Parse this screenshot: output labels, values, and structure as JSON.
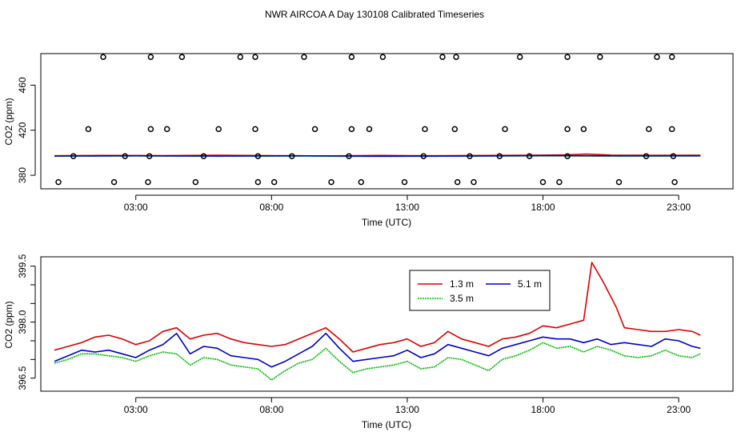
{
  "figure_title": "NWR AIRCOA A  Day 130108  Calibrated Timeseries",
  "chart_data": [
    {
      "type": "line",
      "title": "NWR AIRCOA A  Day 130108  Calibrated Timeseries",
      "xlabel": "Time (UTC)",
      "ylabel": "CO2 (ppm)",
      "xlim": [
        -0.5,
        25.0
      ],
      "ylim": [
        368,
        488
      ],
      "xticks": [
        3,
        8,
        13,
        18,
        23
      ],
      "xtick_labels": [
        "03:00",
        "08:00",
        "13:00",
        "18:00",
        "23:00"
      ],
      "yticks": [
        380,
        420,
        460
      ],
      "ytick_labels": [
        "380",
        "420",
        "460"
      ],
      "grid": false,
      "points_top": {
        "y": 485,
        "x": [
          1.8,
          3.55,
          4.7,
          6.85,
          7.4,
          9.2,
          10.95,
          12.1,
          14.3,
          14.8,
          17.15,
          18.9,
          20.1,
          22.2,
          22.75
        ]
      },
      "points_mid": {
        "y": 421,
        "x": [
          1.25,
          3.55,
          4.15,
          6.05,
          7.4,
          9.6,
          10.95,
          11.6,
          13.65,
          14.75,
          16.6,
          18.9,
          19.5,
          21.9,
          22.75
        ]
      },
      "points_low": {
        "y": 397,
        "x": [
          0.7,
          2.6,
          3.5,
          5.5,
          7.5,
          8.75,
          10.85,
          13.6,
          15.3,
          16.4,
          17.5,
          18.9,
          21.8,
          22.8
        ]
      },
      "points_bottom": {
        "y": 374,
        "x": [
          0.15,
          2.2,
          3.45,
          5.2,
          7.5,
          8.1,
          10.2,
          11.3,
          12.9,
          14.85,
          15.45,
          18.0,
          18.6,
          20.8,
          22.85
        ]
      },
      "series": [
        {
          "name": "1.3 m",
          "color": "#dd0000",
          "x": [
            0,
            2,
            4,
            6,
            8,
            10,
            12,
            14,
            16,
            18,
            18.9,
            19.6,
            20.5,
            22,
            23.8
          ],
          "values": [
            397.3,
            397.6,
            397.4,
            397.8,
            397.5,
            397.2,
            397.6,
            397.3,
            397.6,
            397.9,
            398.2,
            398.9,
            398.0,
            397.7,
            397.8
          ]
        },
        {
          "name": "3.5 m",
          "color": "#00bb00",
          "x": [
            0,
            3,
            6,
            9,
            12,
            15,
            18,
            21,
            23.8
          ],
          "values": [
            396.9,
            397.1,
            396.8,
            397.0,
            396.7,
            396.9,
            397.2,
            396.9,
            397.1
          ]
        },
        {
          "name": "5.1 m",
          "color": "#0000cc",
          "x": [
            0,
            3,
            6,
            9,
            12,
            15,
            18,
            21,
            23.8
          ],
          "values": [
            397.1,
            397.3,
            397.1,
            397.3,
            397.0,
            397.2,
            397.5,
            397.3,
            397.3
          ]
        }
      ]
    },
    {
      "type": "line",
      "xlabel": "Time (UTC)",
      "ylabel": "CO2 (ppm)",
      "xlim": [
        -0.5,
        25.0
      ],
      "ylim": [
        396.15,
        399.75
      ],
      "xticks": [
        3,
        8,
        13,
        18,
        23
      ],
      "xtick_labels": [
        "03:00",
        "08:00",
        "13:00",
        "18:00",
        "23:00"
      ],
      "yticks": [
        396.5,
        397.0,
        397.5,
        398.0,
        398.5,
        399.0,
        399.5
      ],
      "ytick_labels": [
        "396.5",
        "",
        "",
        "398.0",
        "",
        "",
        "399.5"
      ],
      "grid": false,
      "legend": {
        "position": "top-center",
        "entries": [
          "1.3 m",
          "5.1 m",
          "3.5 m"
        ]
      },
      "series": [
        {
          "name": "1.3 m",
          "color": "#dd0000",
          "x": [
            0.0,
            0.5,
            1.0,
            1.5,
            2.0,
            2.5,
            3.0,
            3.5,
            4.0,
            4.5,
            5.0,
            5.5,
            6.0,
            6.5,
            7.0,
            7.5,
            8.0,
            8.5,
            9.0,
            9.5,
            10.0,
            10.5,
            11.0,
            11.5,
            12.0,
            12.5,
            13.0,
            13.5,
            14.0,
            14.5,
            15.0,
            15.5,
            16.0,
            16.5,
            17.0,
            17.5,
            18.0,
            18.5,
            19.0,
            19.5,
            19.8,
            20.2,
            20.7,
            21.0,
            21.5,
            22.0,
            22.5,
            23.0,
            23.5,
            23.8
          ],
          "values": [
            397.25,
            397.35,
            397.45,
            397.6,
            397.65,
            397.55,
            397.4,
            397.5,
            397.75,
            397.85,
            397.55,
            397.65,
            397.7,
            397.55,
            397.45,
            397.4,
            397.35,
            397.4,
            397.55,
            397.7,
            397.85,
            397.55,
            397.2,
            397.3,
            397.4,
            397.45,
            397.55,
            397.35,
            397.45,
            397.75,
            397.55,
            397.45,
            397.35,
            397.55,
            397.6,
            397.7,
            397.9,
            397.85,
            397.95,
            398.05,
            399.6,
            399.1,
            398.4,
            397.85,
            397.8,
            397.75,
            397.75,
            397.8,
            397.75,
            397.65
          ]
        },
        {
          "name": "5.1 m",
          "color": "#0000cc",
          "x": [
            0.0,
            0.5,
            1.0,
            1.5,
            2.0,
            2.5,
            3.0,
            3.5,
            4.0,
            4.5,
            5.0,
            5.5,
            6.0,
            6.5,
            7.0,
            7.5,
            8.0,
            8.5,
            9.0,
            9.5,
            10.0,
            10.5,
            11.0,
            11.5,
            12.0,
            12.5,
            13.0,
            13.5,
            14.0,
            14.5,
            15.0,
            15.5,
            16.0,
            16.5,
            17.0,
            17.5,
            18.0,
            18.5,
            19.0,
            19.5,
            20.0,
            20.5,
            21.0,
            21.5,
            22.0,
            22.5,
            23.0,
            23.5,
            23.8
          ],
          "values": [
            396.95,
            397.1,
            397.25,
            397.2,
            397.25,
            397.15,
            397.05,
            397.25,
            397.4,
            397.7,
            397.15,
            397.35,
            397.3,
            397.1,
            397.05,
            397.0,
            396.8,
            396.95,
            397.15,
            397.35,
            397.7,
            397.3,
            396.95,
            397.0,
            397.05,
            397.1,
            397.25,
            397.05,
            397.15,
            397.4,
            397.3,
            397.2,
            397.1,
            397.3,
            397.4,
            397.5,
            397.6,
            397.55,
            397.55,
            397.45,
            397.55,
            397.4,
            397.45,
            397.4,
            397.35,
            397.55,
            397.5,
            397.35,
            397.3
          ]
        },
        {
          "name": "3.5 m",
          "color": "#00bb00",
          "x": [
            0.0,
            0.5,
            1.0,
            1.5,
            2.0,
            2.5,
            3.0,
            3.5,
            4.0,
            4.5,
            5.0,
            5.5,
            6.0,
            6.5,
            7.0,
            7.5,
            8.0,
            8.5,
            9.0,
            9.5,
            10.0,
            10.5,
            11.0,
            11.5,
            12.0,
            12.5,
            13.0,
            13.5,
            14.0,
            14.5,
            15.0,
            15.5,
            16.0,
            16.5,
            17.0,
            17.5,
            18.0,
            18.5,
            19.0,
            19.5,
            20.0,
            20.5,
            21.0,
            21.5,
            22.0,
            22.5,
            23.0,
            23.5,
            23.8
          ],
          "values": [
            396.9,
            397.0,
            397.15,
            397.15,
            397.1,
            397.05,
            396.95,
            397.1,
            397.2,
            397.15,
            396.85,
            397.05,
            397.0,
            396.85,
            396.8,
            396.75,
            396.45,
            396.7,
            396.9,
            397.0,
            397.3,
            396.95,
            396.65,
            396.75,
            396.8,
            396.85,
            396.95,
            396.75,
            396.8,
            397.05,
            397.0,
            396.85,
            396.7,
            397.0,
            397.1,
            397.25,
            397.45,
            397.3,
            397.35,
            397.2,
            397.35,
            397.25,
            397.1,
            397.05,
            397.1,
            397.25,
            397.1,
            397.05,
            397.15
          ]
        }
      ]
    }
  ]
}
